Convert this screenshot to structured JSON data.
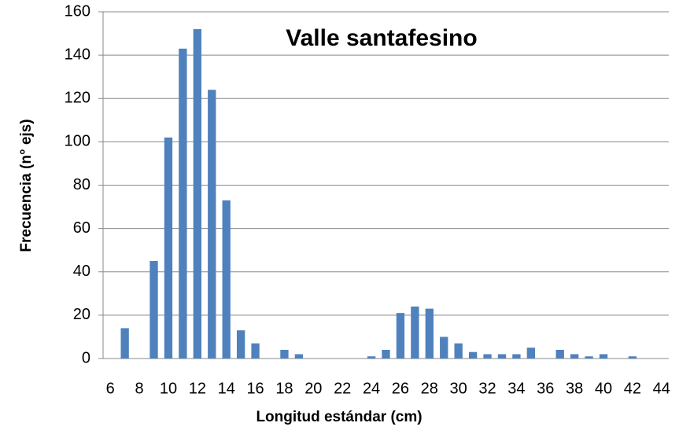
{
  "chart_data": {
    "type": "bar",
    "title": "Valle santafesino",
    "x_label": "Longitud estándar (cm)",
    "y_label": "Frecuencia (n° ejs)",
    "categories": [
      6,
      null,
      8,
      null,
      10,
      null,
      12,
      null,
      14,
      null,
      16,
      null,
      18,
      null,
      20,
      null,
      22,
      null,
      24,
      null,
      26,
      null,
      28,
      null,
      30,
      null,
      32,
      null,
      34,
      null,
      36,
      null,
      38,
      null,
      40,
      null,
      42,
      null,
      44
    ],
    "values": [
      0,
      14,
      0,
      45,
      102,
      143,
      152,
      124,
      73,
      13,
      7,
      0,
      4,
      2,
      0,
      0,
      0,
      0,
      1,
      4,
      21,
      24,
      23,
      10,
      7,
      3,
      2,
      2,
      2,
      5,
      0,
      4,
      2,
      1,
      2,
      0,
      1,
      0,
      0
    ],
    "color": "#4f81bd",
    "ylim": [
      0,
      160
    ],
    "yticks": [
      0,
      20,
      40,
      60,
      80,
      100,
      120,
      140,
      160
    ],
    "grid": true
  }
}
